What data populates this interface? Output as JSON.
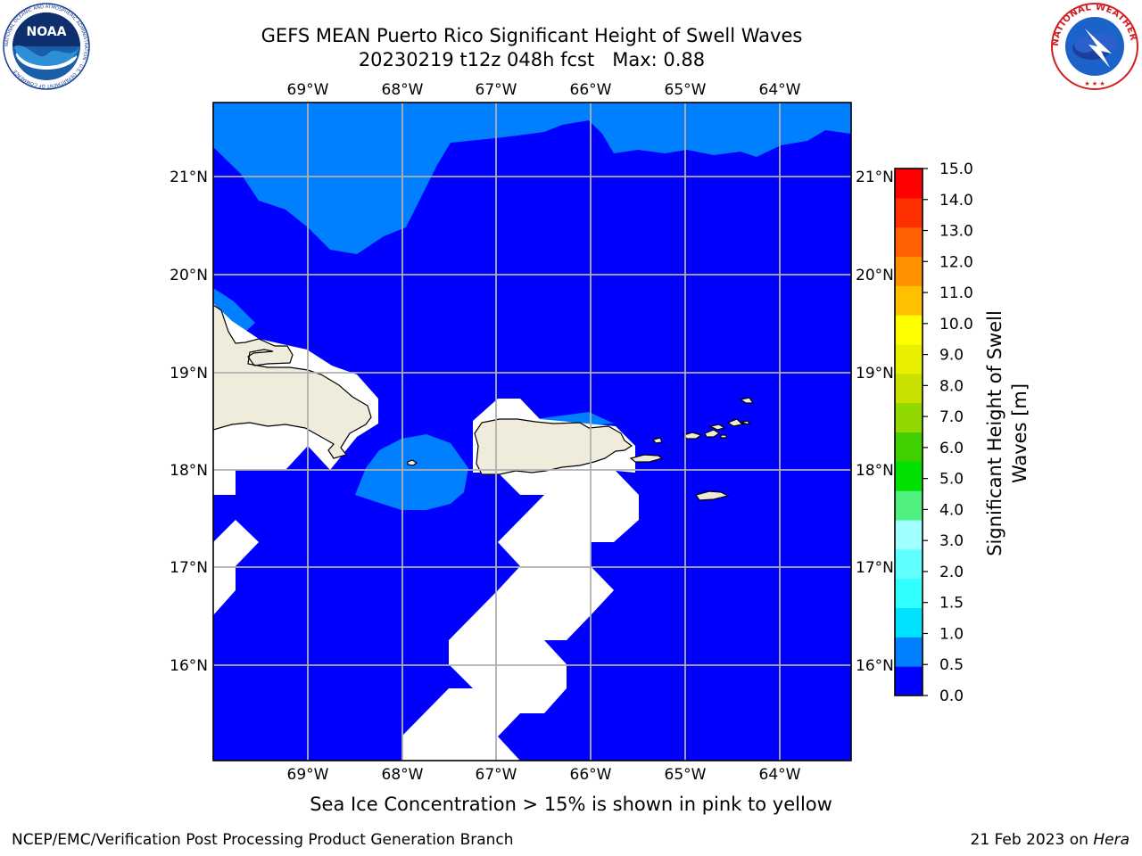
{
  "title_line1": "GEFS MEAN Puerto Rico Significant Height of Swell Waves",
  "title_line2": "20230219 t12z 048h fcst   Max: 0.88",
  "map": {
    "lon_labels": [
      "69°W",
      "68°W",
      "67°W",
      "66°W",
      "65°W",
      "64°W"
    ],
    "lat_labels": [
      "21°N",
      "20°N",
      "19°N",
      "18°N",
      "17°N",
      "16°N"
    ],
    "land_color": "#efecdc",
    "grid": true
  },
  "colorbar": {
    "title_line1": "Significant Height of Swell",
    "title_line2": "Waves [m]",
    "tick_labels": [
      "0.0",
      "0.5",
      "1.0",
      "1.5",
      "2.0",
      "3.0",
      "4.0",
      "5.0",
      "6.0",
      "7.0",
      "8.0",
      "9.0",
      "10.0",
      "11.0",
      "12.0",
      "13.0",
      "14.0",
      "15.0"
    ],
    "colors": [
      "#0000ff",
      "#0080ff",
      "#00e0ff",
      "#30ffff",
      "#60ffff",
      "#a0ffff",
      "#50f080",
      "#00e000",
      "#40d000",
      "#90d800",
      "#c8e000",
      "#e8f000",
      "#ffff00",
      "#ffc000",
      "#ff9000",
      "#ff6000",
      "#ff3000",
      "#ff0000"
    ]
  },
  "sea_ice_note": "Sea Ice Concentration > 15% is shown in pink to yellow",
  "footer": {
    "left": "NCEP/EMC/Verification Post Processing Product Generation Branch",
    "right_date": "21 Feb 2023 on ",
    "right_machine": "Hera"
  },
  "logos": {
    "noaa_text": "NOAA",
    "noaa_ring": "NATIONAL OCEANIC AND ATMOSPHERIC ADMINISTRATION · U.S. DEPARTMENT OF COMMERCE",
    "nws_ring": "NATIONAL WEATHER SERVICE"
  }
}
